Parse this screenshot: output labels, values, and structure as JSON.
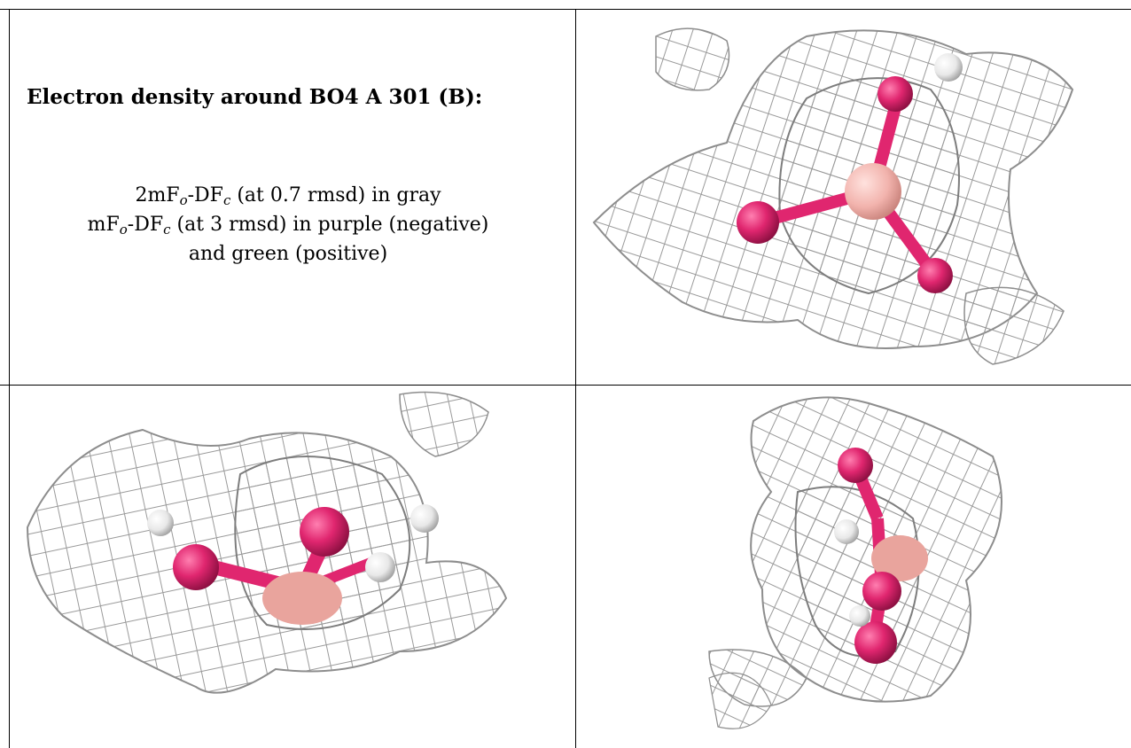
{
  "title": "Electron density around BO4 A 301 (B):",
  "legend": {
    "line1_prefix": "2mF",
    "line1_sub_o": "o",
    "line1_mid": "-DF",
    "line1_sub_c": "c",
    "line1_suffix": " (at 0.7 rmsd) in gray",
    "line2_prefix": "mF",
    "line2_sub_o": "o",
    "line2_mid": "-DF",
    "line2_sub_c": "c",
    "line2_suffix": " (at 3 rmsd) in purple (negative)",
    "line3": "and green (positive)"
  },
  "views": [
    {
      "name": "view-top-right"
    },
    {
      "name": "view-bottom-left"
    },
    {
      "name": "view-bottom-right"
    }
  ],
  "colors": {
    "mesh": "#9a9a9a",
    "oxygen": "#e0266f",
    "boron": "#f2b3ad",
    "hydrogen": "#e8e8e8",
    "grid_line": "#000000"
  }
}
